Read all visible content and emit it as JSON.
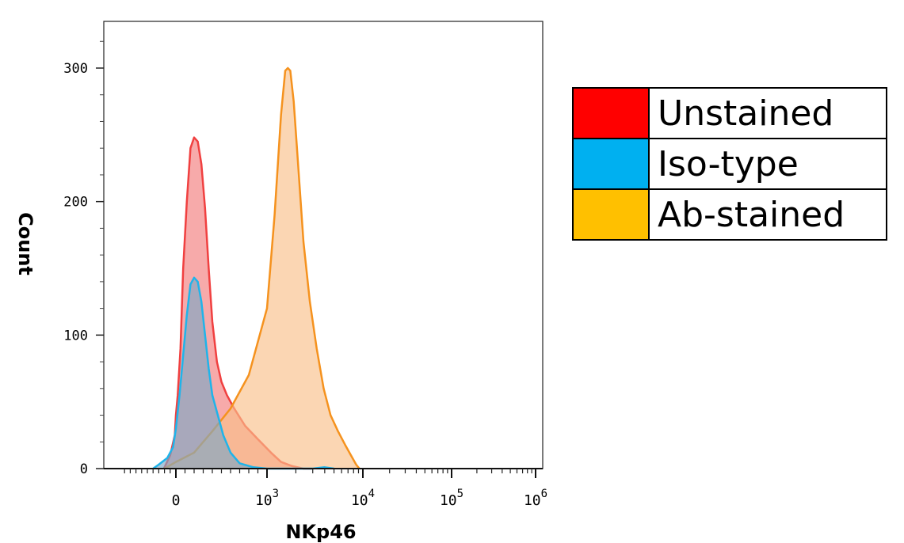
{
  "chart_data": {
    "type": "area",
    "xlabel": "NKp46",
    "ylabel": "Count",
    "x_scale": "biexponential",
    "ylim": [
      0,
      330
    ],
    "y_ticks": [
      0,
      100,
      200,
      300
    ],
    "x_ticks": [
      {
        "label": "0",
        "base": "0",
        "exp": ""
      },
      {
        "label": "10^3",
        "base": "10",
        "exp": "3"
      },
      {
        "label": "10^4",
        "base": "10",
        "exp": "4"
      },
      {
        "label": "10^5",
        "base": "10",
        "exp": "5"
      },
      {
        "label": "10^6",
        "base": "10",
        "exp": "6"
      }
    ],
    "grid": false,
    "legend_position": "right",
    "series": [
      {
        "name": "Unstained",
        "stroke": "#f04040",
        "fill": "#f27c7c",
        "x": [
          -210,
          -100,
          -20,
          0,
          20,
          50,
          80,
          120,
          160,
          200,
          240,
          280,
          320,
          360,
          400,
          450,
          500,
          560,
          640,
          760,
          900,
          1100,
          1400,
          1800,
          2400,
          3000
        ],
        "y": [
          0,
          10,
          25,
          40,
          55,
          90,
          150,
          200,
          240,
          248,
          245,
          228,
          195,
          150,
          110,
          80,
          65,
          55,
          45,
          32,
          22,
          12,
          5,
          2,
          0,
          0
        ]
      },
      {
        "name": "Iso-type",
        "stroke": "#1fb4ea",
        "fill": "#7ea8c4",
        "x": [
          -400,
          -300,
          -150,
          -50,
          0,
          40,
          80,
          120,
          160,
          200,
          240,
          280,
          320,
          360,
          400,
          460,
          520,
          600,
          700,
          850,
          1000,
          3000,
          4000,
          5000
        ],
        "y": [
          0,
          3,
          8,
          16,
          30,
          55,
          85,
          115,
          138,
          143,
          140,
          125,
          100,
          75,
          55,
          40,
          25,
          12,
          4,
          1,
          0,
          0,
          1,
          0
        ]
      },
      {
        "name": "Ab-stained",
        "stroke": "#f5921e",
        "fill": "#f9c08a",
        "x": [
          -200,
          0,
          200,
          400,
          600,
          800,
          1000,
          1200,
          1400,
          1550,
          1650,
          1750,
          1900,
          2100,
          2400,
          2800,
          3300,
          3900,
          4600,
          5500,
          6500,
          7500,
          8500,
          9200
        ],
        "y": [
          0,
          5,
          12,
          28,
          45,
          70,
          120,
          190,
          265,
          298,
          300,
          298,
          275,
          230,
          170,
          125,
          90,
          60,
          40,
          28,
          18,
          10,
          3,
          0
        ]
      }
    ]
  }
}
